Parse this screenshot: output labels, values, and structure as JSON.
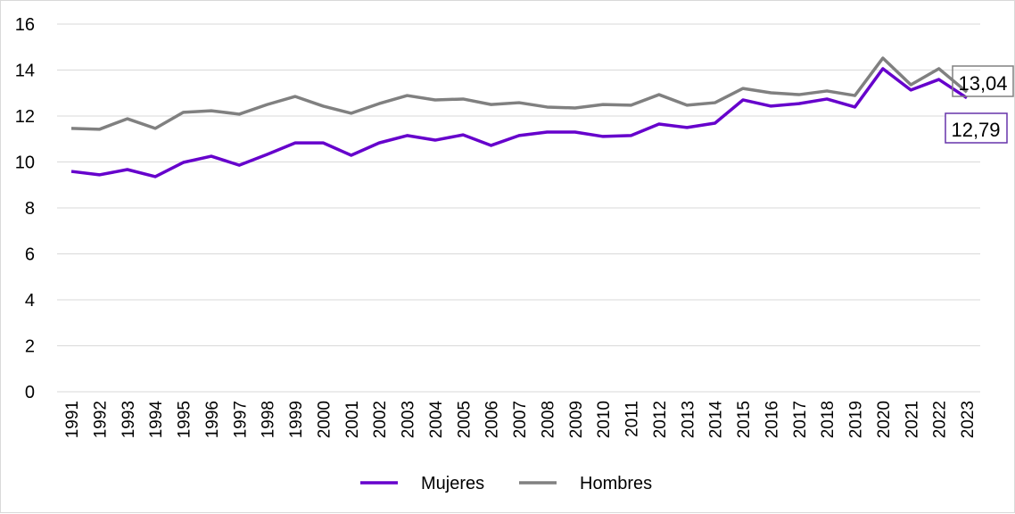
{
  "chart_data": {
    "type": "line",
    "title": "",
    "xlabel": "",
    "ylabel": "",
    "ylim": [
      0,
      16
    ],
    "yticks": [
      0,
      2,
      4,
      6,
      8,
      10,
      12,
      14,
      16
    ],
    "grid": true,
    "legend_position": "bottom",
    "x": [
      "1991",
      "1992",
      "1993",
      "1994",
      "1995",
      "1996",
      "1997",
      "1998",
      "1999",
      "2000",
      "2001",
      "2002",
      "2003",
      "2004",
      "2005",
      "2006",
      "2007",
      "2008",
      "2009",
      "2010",
      "2011",
      "2012",
      "2013",
      "2014",
      "2015",
      "2016",
      "2017",
      "2018",
      "2019",
      "2020",
      "2021",
      "2022",
      "2023"
    ],
    "series": [
      {
        "name": "Mujeres",
        "color": "#6600cc",
        "values": [
          9.59,
          9.44,
          9.67,
          9.36,
          9.98,
          10.25,
          9.86,
          10.33,
          10.83,
          10.83,
          10.29,
          10.83,
          11.15,
          10.95,
          11.18,
          10.72,
          11.15,
          11.3,
          11.3,
          11.11,
          11.15,
          11.65,
          11.5,
          11.69,
          12.7,
          12.43,
          12.54,
          12.74,
          12.39,
          14.06,
          13.13,
          13.59,
          12.79
        ],
        "end_label": "12,79"
      },
      {
        "name": "Hombres",
        "color": "#808080",
        "values": [
          11.46,
          11.42,
          11.88,
          11.46,
          12.16,
          12.23,
          12.08,
          12.5,
          12.85,
          12.43,
          12.12,
          12.54,
          12.89,
          12.7,
          12.74,
          12.5,
          12.58,
          12.39,
          12.35,
          12.5,
          12.47,
          12.93,
          12.47,
          12.58,
          13.2,
          13.01,
          12.93,
          13.09,
          12.89,
          14.52,
          13.36,
          14.06,
          13.04
        ],
        "end_label": "13,04"
      }
    ]
  }
}
